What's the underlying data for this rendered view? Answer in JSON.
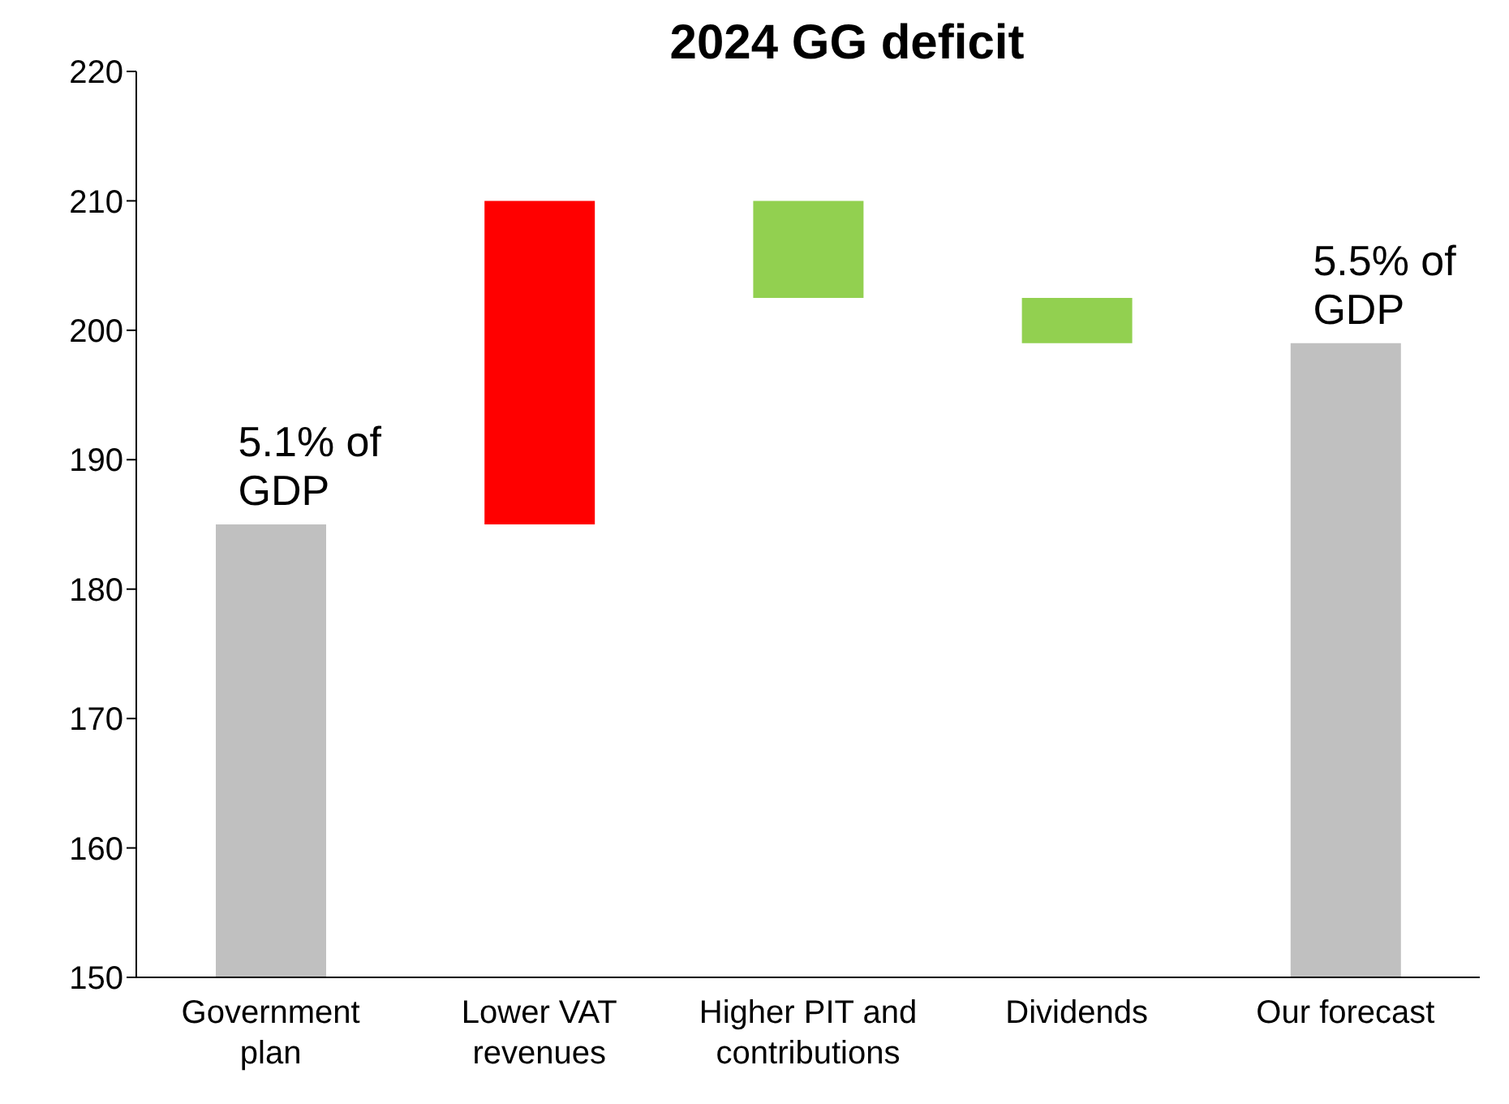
{
  "chart_data": {
    "type": "bar",
    "title": "2024 GG deficit",
    "categories": [
      "Government plan",
      "Lower VAT revenues",
      "Higher PIT and contributions",
      "Dividends",
      "Our forecast"
    ],
    "values": [
      185,
      25,
      7.5,
      3.5,
      199
    ],
    "base": [
      null,
      185,
      202.5,
      199,
      null
    ],
    "colors": [
      "#c0c0c0",
      "#ff0000",
      "#92d050",
      "#92d050",
      "#c0c0c0"
    ],
    "ylim": [
      150,
      220
    ],
    "yticks": [
      150,
      160,
      170,
      180,
      190,
      200,
      210,
      220
    ],
    "annotations": [
      {
        "text": "5.1% of GDP",
        "x": "Government plan",
        "y": 185
      },
      {
        "text": "5.5% of GDP",
        "x": "Our forecast",
        "y": 199
      }
    ]
  }
}
